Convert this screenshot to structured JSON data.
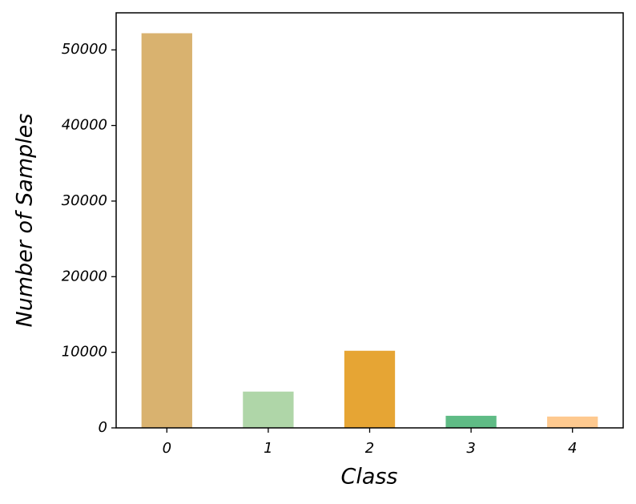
{
  "chart_data": {
    "type": "bar",
    "xlabel": "Class",
    "ylabel": "Number of Samples",
    "categories": [
      "0",
      "1",
      "2",
      "3",
      "4"
    ],
    "values": [
      52200,
      4800,
      10200,
      1600,
      1500
    ],
    "colors": [
      "#d9b26f",
      "#afd6a8",
      "#e6a534",
      "#5fbb85",
      "#fec98f"
    ],
    "ylim": [
      0,
      54900
    ],
    "yticks": [
      0,
      10000,
      20000,
      30000,
      40000,
      50000
    ]
  }
}
